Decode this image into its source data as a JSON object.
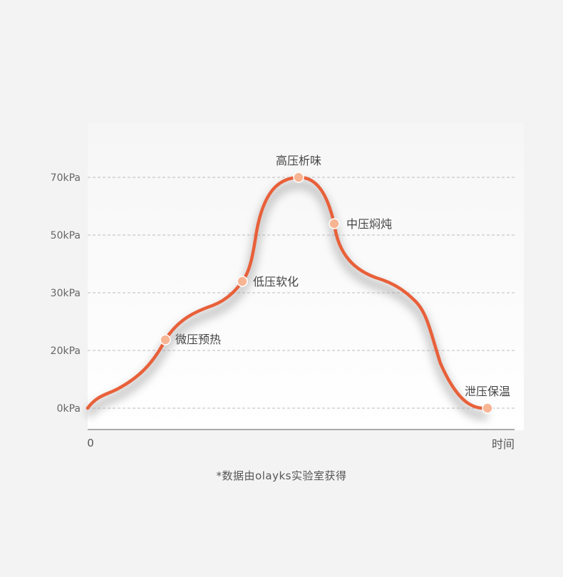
{
  "chart_data": {
    "type": "line",
    "title": "",
    "xlabel": "时间",
    "ylabel": "",
    "x_origin_label": "0",
    "y_ticks": [
      "0kPa",
      "20kPa",
      "30kPa",
      "50kPa",
      "70kPa"
    ],
    "grid": true,
    "grid_style": "dashed",
    "line_color": "#e8603a",
    "marker_color": "#f7b594",
    "stages": [
      {
        "label": "微压预热",
        "value": 22
      },
      {
        "label": "低压软化",
        "value": 33
      },
      {
        "label": "高压析味",
        "value": 70
      },
      {
        "label": "中压焖炖",
        "value": 55
      },
      {
        "label": "泄压保温",
        "value": 0
      }
    ]
  },
  "footnote": "*数据由olayks实验室获得"
}
